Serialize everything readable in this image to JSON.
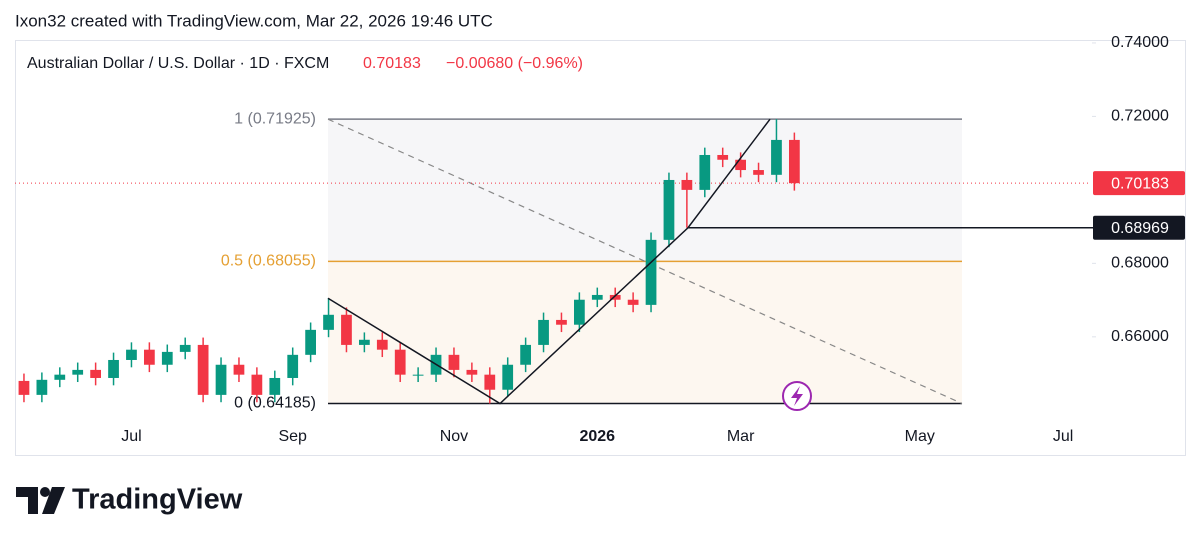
{
  "header": {
    "credit": "Ixon32 created with TradingView.com, Mar 22, 2026 19:46 UTC"
  },
  "chart_data": {
    "type": "candlestick",
    "title": "Australian Dollar / U.S. Dollar · 1D · FXCM",
    "last_price": 0.70183,
    "change": "−0.00680 (−0.96%)",
    "categories": [
      null,
      null,
      null,
      null,
      null,
      null,
      "Jul",
      null,
      null,
      null,
      null,
      null,
      null,
      null,
      null,
      "Sep",
      null,
      null,
      null,
      null,
      null,
      null,
      null,
      null,
      "Nov",
      null,
      null,
      null,
      null,
      null,
      null,
      null,
      "2026",
      null,
      null,
      null,
      null,
      null,
      null,
      null,
      "Mar",
      null,
      null,
      null,
      null,
      null,
      null,
      null,
      null,
      null,
      "May",
      null,
      null,
      null,
      null,
      null,
      null,
      null,
      "Jul",
      null
    ],
    "open": [
      0.648,
      0.6442,
      0.6483,
      0.6497,
      0.651,
      0.6488,
      0.6537,
      0.6565,
      0.6524,
      0.6559,
      0.6578,
      0.6442,
      0.6524,
      0.6497,
      0.6442,
      0.6488,
      0.6551,
      0.6619,
      0.666,
      0.6578,
      0.6592,
      0.6565,
      0.6497,
      0.6497,
      0.6551,
      0.651,
      0.6497,
      0.6456,
      0.6524,
      0.6578,
      0.6646,
      0.6633,
      0.6701,
      0.6714,
      0.6701,
      0.6687,
      0.6864,
      0.7027,
      0.7,
      0.7095,
      0.7082,
      0.7054,
      0.7041,
      0.7136,
      null,
      null,
      null,
      null,
      null,
      null,
      null,
      null,
      null,
      null,
      null,
      null,
      null,
      null,
      null,
      null
    ],
    "high": [
      0.65,
      0.6503,
      0.6517,
      0.653,
      0.653,
      0.6557,
      0.6585,
      0.6585,
      0.6579,
      0.6598,
      0.6598,
      0.6544,
      0.6544,
      0.6517,
      0.6508,
      0.6571,
      0.6639,
      0.6705,
      0.668,
      0.6612,
      0.6612,
      0.6585,
      0.6517,
      0.6571,
      0.6571,
      0.653,
      0.6517,
      0.6544,
      0.6598,
      0.6666,
      0.6666,
      0.6721,
      0.6734,
      0.6734,
      0.6721,
      0.6884,
      0.7047,
      0.7047,
      0.7115,
      0.7115,
      0.7102,
      0.7074,
      0.71925,
      0.7156,
      null,
      null,
      null,
      null,
      null,
      null,
      null,
      null,
      null,
      null,
      null,
      null,
      null,
      null,
      null,
      null
    ],
    "low": [
      0.6422,
      0.6422,
      0.6463,
      0.6477,
      0.6468,
      0.6468,
      0.6517,
      0.6504,
      0.6504,
      0.6539,
      0.6422,
      0.6422,
      0.6477,
      0.6422,
      0.6422,
      0.6468,
      0.6531,
      0.6599,
      0.6558,
      0.6558,
      0.6545,
      0.6477,
      0.6477,
      0.6477,
      0.649,
      0.6477,
      0.64185,
      0.6436,
      0.6504,
      0.6558,
      0.6613,
      0.6613,
      0.6681,
      0.6681,
      0.6667,
      0.6667,
      0.6844,
      0.68969,
      0.698,
      0.7062,
      0.7034,
      0.7021,
      0.7021,
      0.6998,
      null,
      null,
      null,
      null,
      null,
      null,
      null,
      null,
      null,
      null,
      null,
      null,
      null,
      null,
      null,
      null
    ],
    "close": [
      0.6442,
      0.6483,
      0.6497,
      0.651,
      0.6488,
      0.6537,
      0.6565,
      0.6524,
      0.6559,
      0.6578,
      0.6442,
      0.6524,
      0.6497,
      0.6442,
      0.6488,
      0.6551,
      0.6619,
      0.666,
      0.6578,
      0.6592,
      0.6565,
      0.6497,
      0.6497,
      0.6551,
      0.651,
      0.6497,
      0.6456,
      0.6524,
      0.6578,
      0.6646,
      0.6633,
      0.6701,
      0.6714,
      0.6701,
      0.6687,
      0.6864,
      0.7027,
      0.7,
      0.7095,
      0.7082,
      0.7054,
      0.7041,
      0.7136,
      0.70183,
      null,
      null,
      null,
      null,
      null,
      null,
      null,
      null,
      null,
      null,
      null,
      null,
      null,
      null,
      null,
      null
    ],
    "up_color": "#089981",
    "down_color": "#f23645",
    "ylim": [
      0.636,
      0.7408
    ],
    "yticks": [
      {
        "value": 0.66,
        "label": "0.66000"
      },
      {
        "value": 0.68,
        "label": "0.68000"
      },
      {
        "value": 0.72,
        "label": "0.72000"
      },
      {
        "value": 0.74,
        "label": "0.74000"
      }
    ],
    "fib_levels": [
      {
        "value": 0.71925,
        "label": "1 (0.71925)",
        "color": "#787b86"
      },
      {
        "value": 0.68055,
        "label": "0.5 (0.68055)",
        "color": "#e5a033"
      },
      {
        "value": 0.64185,
        "label": "0 (0.64185)",
        "color": "#131722"
      }
    ],
    "horizontal_line": 0.68969,
    "zigzag": [
      0.6705,
      0.64185,
      0.68969,
      0.71925
    ],
    "grid": false
  },
  "footer": {
    "brand": "TradingView"
  }
}
